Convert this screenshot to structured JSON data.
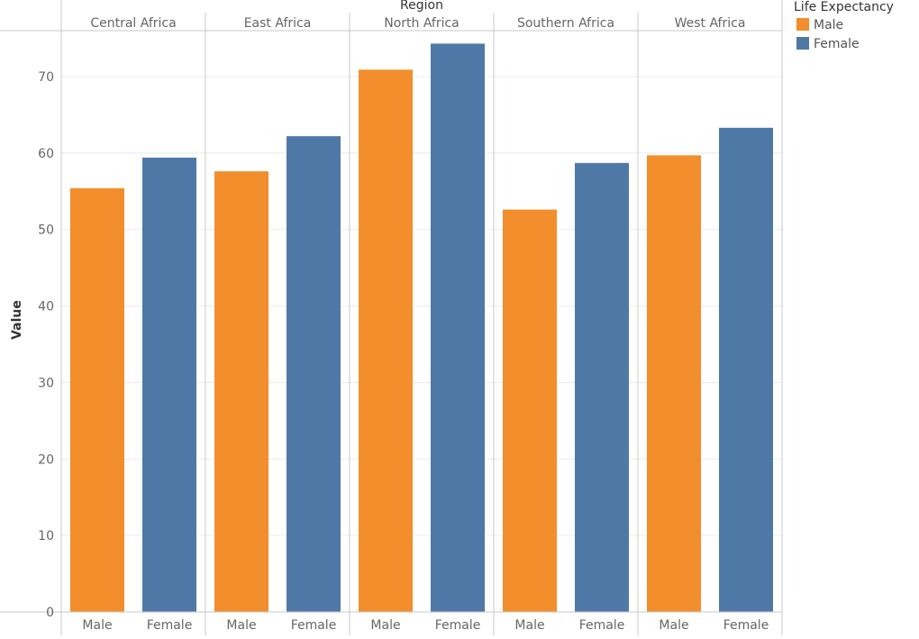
{
  "chart_data": {
    "type": "bar",
    "title": "",
    "column_header": "Region",
    "xlabel": "",
    "ylabel": "Value",
    "ylim": [
      0,
      76
    ],
    "yticks": [
      0,
      10,
      20,
      30,
      40,
      50,
      60,
      70
    ],
    "grid": true,
    "legend": {
      "title": "Life Expectancy",
      "position": "top-right"
    },
    "categories": [
      "Central Africa",
      "East Africa",
      "North Africa",
      "Southern Africa",
      "West Africa"
    ],
    "subcategories": [
      "Male",
      "Female"
    ],
    "series": [
      {
        "name": "Male",
        "color": "#f28e2b",
        "values": [
          55.4,
          57.6,
          70.9,
          52.6,
          59.7
        ]
      },
      {
        "name": "Female",
        "color": "#4e79a7",
        "values": [
          59.4,
          62.2,
          74.3,
          58.7,
          63.3
        ]
      }
    ]
  }
}
